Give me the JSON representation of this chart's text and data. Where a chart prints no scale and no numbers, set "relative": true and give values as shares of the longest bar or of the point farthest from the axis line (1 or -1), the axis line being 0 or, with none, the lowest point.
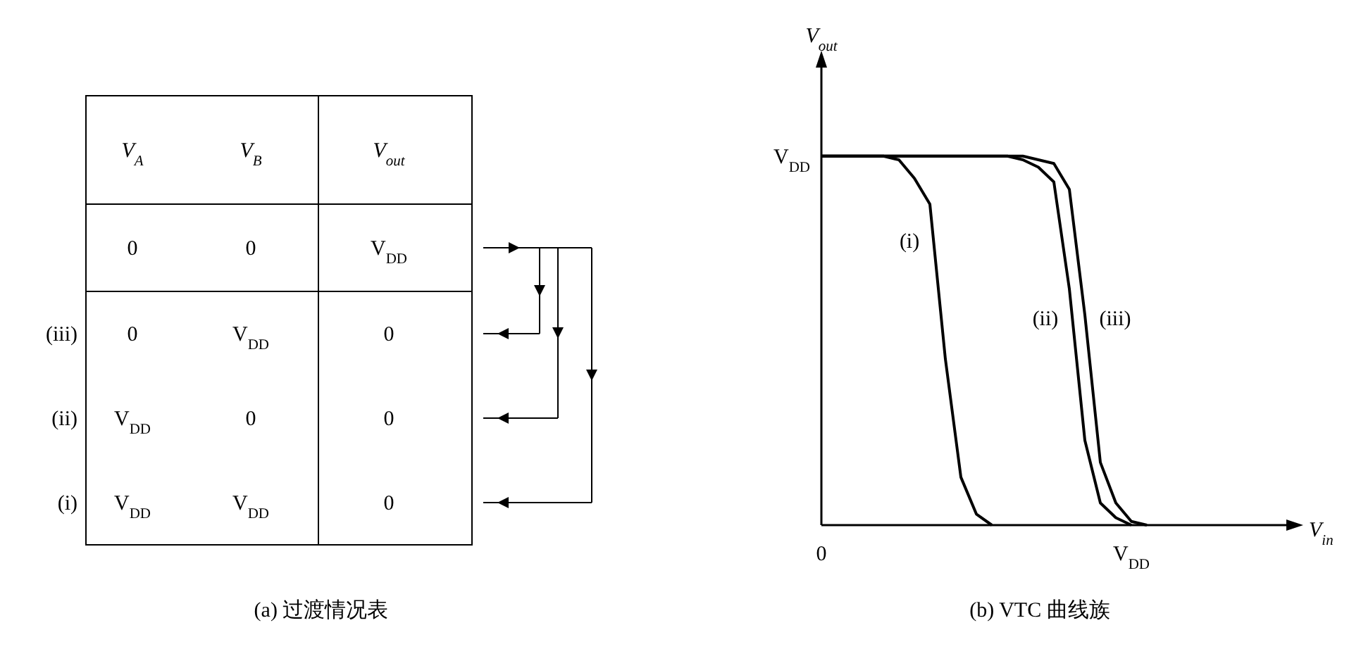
{
  "chart_data": [
    {
      "type": "other",
      "title": "(a) 过渡情况表",
      "categories": [
        "V$_{A}$",
        "V$_{B}$",
        "V$_{out}$"
      ],
      "y_categories": [
        null,
        "(iii)",
        "(ii)",
        "(i)"
      ],
      "cell_labels": [
        [
          "0",
          "0",
          "V$_{DD}$"
        ],
        [
          "0",
          "V$_{DD}$",
          "0"
        ],
        [
          "V$_{DD}$",
          "0",
          "0"
        ],
        [
          "V$_{DD}$",
          "V$_{DD}$",
          "0"
        ]
      ]
    },
    {
      "type": "line",
      "title": "(b) VTC 曲线族",
      "xlabel": "V$_{in}$",
      "ylabel": "V$_{out}$",
      "relative": true,
      "categories": [
        "0",
        null,
        null,
        null,
        null,
        null,
        null,
        null,
        null,
        null,
        null,
        null,
        null,
        null,
        null,
        null,
        null,
        null,
        null,
        null,
        "V$_{DD}$",
        null,
        null,
        null,
        null,
        null,
        null,
        null,
        null,
        null,
        null
      ],
      "annotations": [
        "V$_{DD}$"
      ],
      "marker": "none",
      "line_style": "solid",
      "series": [
        {
          "name": "(i)",
          "color": "#000000",
          "values": [
            1,
            1,
            1,
            1,
            1,
            0.99,
            0.94,
            0.87,
            0.45,
            0.13,
            0.03,
            0,
            null,
            null,
            null,
            null,
            null,
            null,
            null,
            null,
            null,
            null,
            null,
            null,
            null,
            null,
            null,
            null,
            null,
            null,
            null
          ]
        },
        {
          "name": "(ii)",
          "color": "#000000",
          "values": [
            1,
            1,
            1,
            1,
            1,
            1,
            1,
            1,
            1,
            1,
            1,
            1,
            1,
            0.99,
            0.97,
            0.93,
            0.64,
            0.23,
            0.06,
            0.02,
            0,
            null,
            null,
            null,
            null,
            null,
            null,
            null,
            null,
            null,
            null
          ]
        },
        {
          "name": "(iii)",
          "color": "#000000",
          "values": [
            1,
            1,
            1,
            1,
            1,
            1,
            1,
            1,
            1,
            1,
            1,
            1,
            1,
            1,
            0.99,
            0.98,
            0.91,
            0.57,
            0.17,
            0.06,
            0.01,
            0,
            null,
            null,
            null,
            null,
            null,
            null,
            null,
            null,
            null
          ]
        }
      ]
    }
  ]
}
